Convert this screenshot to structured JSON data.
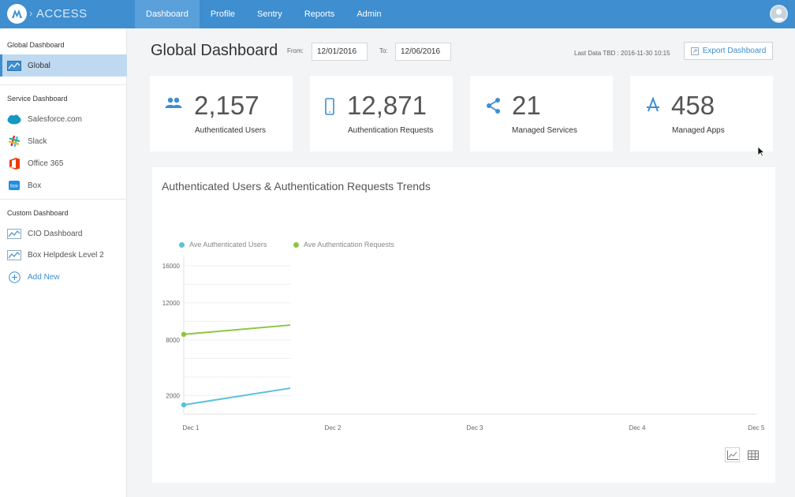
{
  "brand": {
    "name": "ACCESS",
    "separator": "›"
  },
  "nav": [
    "Dashboard",
    "Profile",
    "Sentry",
    "Reports",
    "Admin"
  ],
  "sidebar": {
    "global_section": "Global Dashboard",
    "global_item": "Global",
    "service_section": "Service Dashboard",
    "services": [
      "Salesforce.com",
      "Slack",
      "Office 365",
      "Box"
    ],
    "custom_section": "Custom Dashboard",
    "custom": [
      "CIO Dashboard",
      "Box Helpdesk Level 2"
    ],
    "add_new": "Add New"
  },
  "header": {
    "title": "Global Dashboard",
    "from_label": "From:",
    "from_value": "12/01/2016",
    "to_label": "To:",
    "to_value": "12/06/2016",
    "last_data": "Last Data TBD : 2016-11-30 10:15",
    "export_label": "Export Dashboard"
  },
  "stats": [
    {
      "value": "2,157",
      "label": "Authenticated Users",
      "icon": "users-icon"
    },
    {
      "value": "12,871",
      "label": "Authentication Requests",
      "icon": "phone-icon"
    },
    {
      "value": "21",
      "label": "Managed Services",
      "icon": "share-icon"
    },
    {
      "value": "458",
      "label": "Managed Apps",
      "icon": "apps-icon"
    }
  ],
  "colors": {
    "accent": "#3e8ed0",
    "users": "#5bc0de",
    "requests": "#8cc63f"
  },
  "chart_data": {
    "type": "line",
    "title": "Authenticated Users & Authentication Requests Trends",
    "categories": [
      "Dec 1",
      "Dec 2",
      "Dec 3",
      "Dec 4",
      "Dec 5"
    ],
    "y_ticks": [
      2000,
      8000,
      12000,
      16000
    ],
    "ylim": [
      0,
      17000
    ],
    "series": [
      {
        "name": "Ave Authenticated Users",
        "color": "#5bc0de",
        "x": [
          0,
          0.75
        ],
        "values": [
          1000,
          2800
        ]
      },
      {
        "name": "Ave Authentication Requests",
        "color": "#8cc63f",
        "x": [
          0,
          0.75
        ],
        "values": [
          8600,
          9600
        ]
      }
    ],
    "legend": "top-left"
  }
}
